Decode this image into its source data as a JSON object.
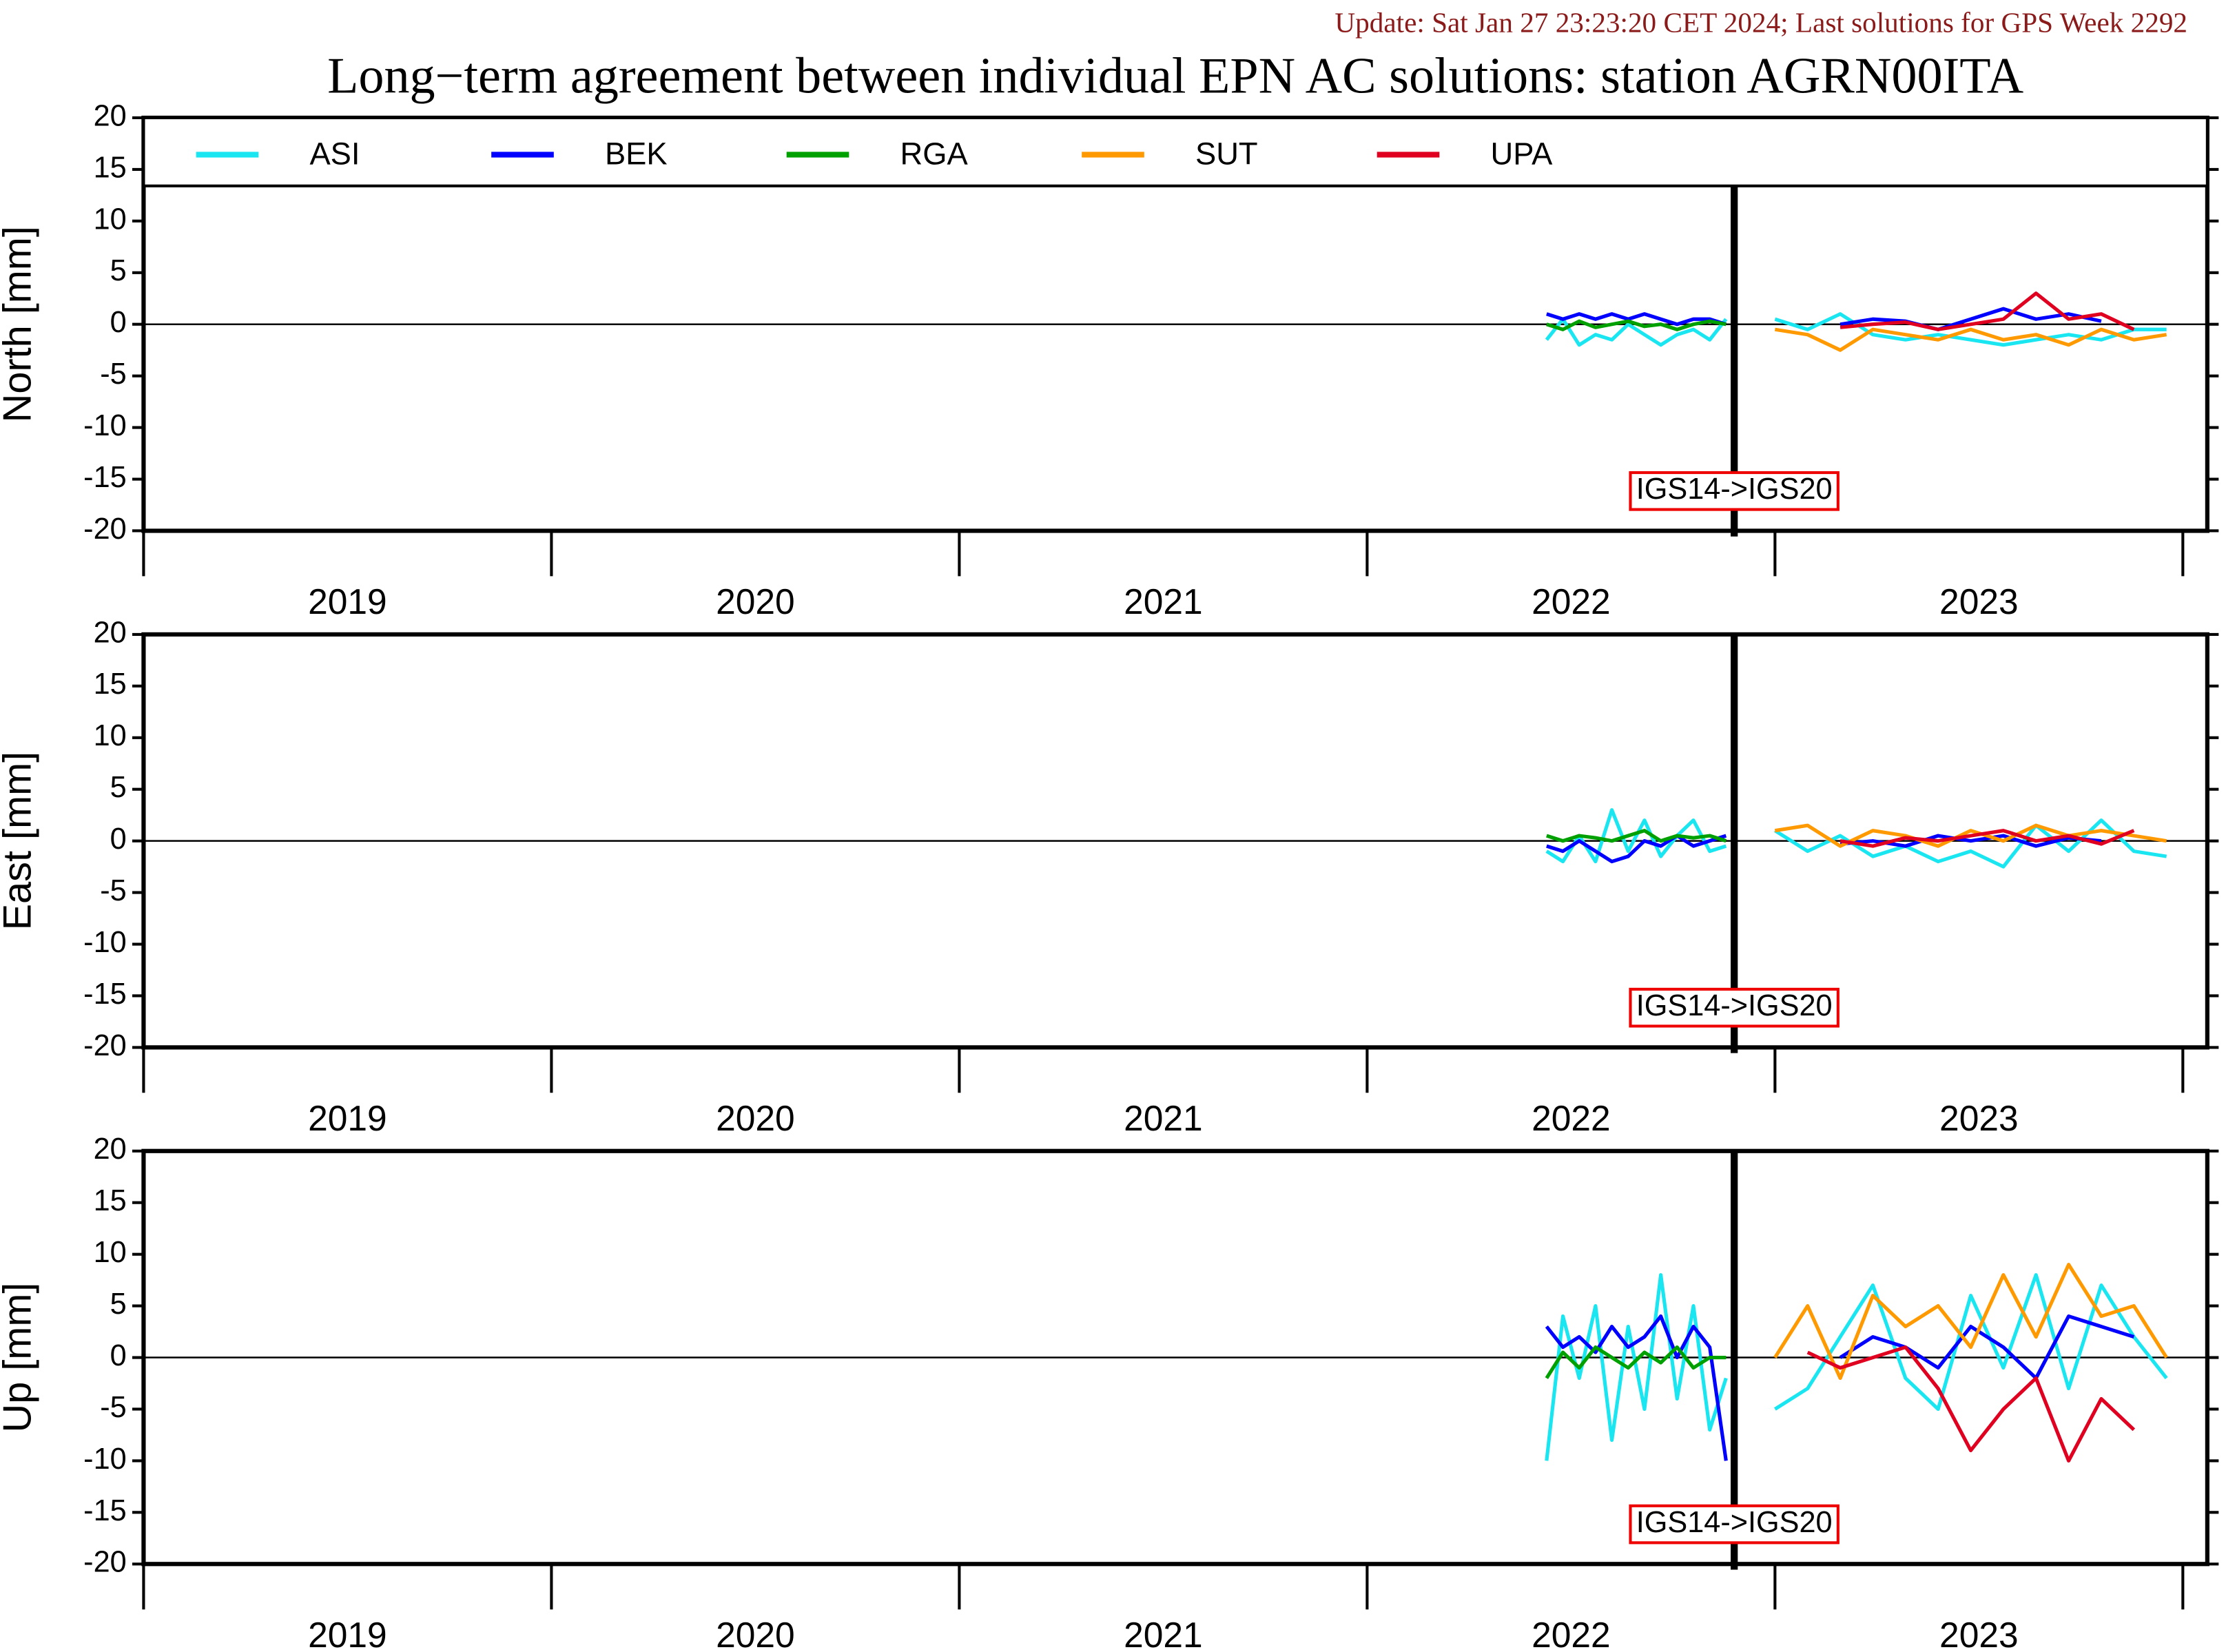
{
  "header": {
    "update": "Update: Sat Jan 27 23:23:20 CET 2024; Last solutions for GPS Week 2292",
    "title": "Long−term agreement between individual EPN AC solutions: station AGRN00ITA"
  },
  "chart_data": [
    {
      "type": "line",
      "y_label": "North [mm]",
      "legend": "top",
      "zero_line": true,
      "ylim": [
        -20,
        20
      ],
      "yticks": [
        -20,
        -15,
        -10,
        -5,
        0,
        5,
        10,
        15,
        20
      ],
      "xlim": [
        2019,
        2024.06
      ],
      "xticks": [
        2019,
        2020,
        2021,
        2022,
        2023,
        2024
      ],
      "x_labels": [
        {
          "value": 2019.5,
          "label": "2019"
        },
        {
          "value": 2020.5,
          "label": "2020"
        },
        {
          "value": 2021.5,
          "label": "2021"
        },
        {
          "value": 2022.5,
          "label": "2022"
        },
        {
          "value": 2023.5,
          "label": "2023"
        }
      ],
      "annotation": {
        "text": "IGS14->IGS20",
        "x": 2022.9
      },
      "x": [
        2022.44,
        2022.48,
        2022.52,
        2022.56,
        2022.6,
        2022.64,
        2022.68,
        2022.72,
        2022.76,
        2022.8,
        2022.84,
        2022.88,
        2022.94,
        2023.0,
        2023.08,
        2023.16,
        2023.24,
        2023.32,
        2023.4,
        2023.48,
        2023.56,
        2023.64,
        2023.72,
        2023.8,
        2023.88,
        2023.96
      ],
      "series": [
        {
          "name": "ASI",
          "color": "#19e6f0",
          "values": [
            -1.5,
            0.5,
            -2,
            -1,
            -1.5,
            0,
            -1,
            -2,
            -1,
            -0.5,
            -1.5,
            0.5,
            null,
            0.5,
            -0.5,
            1,
            -1,
            -1.5,
            -1,
            -1.5,
            -2,
            -1.5,
            -1,
            -1.5,
            -0.5,
            -0.5
          ]
        },
        {
          "name": "BEK",
          "color": "#0000ff",
          "values": [
            1,
            0.5,
            1,
            0.5,
            1,
            0.5,
            1,
            0.5,
            0,
            0.5,
            0.5,
            0,
            null,
            null,
            null,
            0,
            0.5,
            0.3,
            -0.5,
            0.5,
            1.5,
            0.5,
            1,
            0.3,
            null,
            null
          ]
        },
        {
          "name": "RGA",
          "color": "#00a000",
          "values": [
            0,
            -0.5,
            0.3,
            -0.3,
            0,
            0.3,
            -0.2,
            0,
            -0.5,
            0,
            0.3,
            0,
            null,
            null,
            null,
            null,
            null,
            null,
            null,
            null,
            null,
            null,
            null,
            null,
            null,
            null
          ]
        },
        {
          "name": "SUT",
          "color": "#ff9900",
          "values": [
            null,
            null,
            null,
            null,
            null,
            null,
            null,
            null,
            null,
            null,
            null,
            null,
            null,
            -0.5,
            -1,
            -2.5,
            -0.5,
            -1,
            -1.5,
            -0.5,
            -1.5,
            -1,
            -2,
            -0.5,
            -1.5,
            -1
          ]
        },
        {
          "name": "UPA",
          "color": "#e00020",
          "values": [
            null,
            null,
            null,
            null,
            null,
            null,
            null,
            null,
            null,
            null,
            null,
            null,
            null,
            null,
            null,
            -0.3,
            0,
            0.2,
            -0.5,
            0,
            0.5,
            3,
            0.5,
            1,
            -0.5,
            null
          ]
        }
      ]
    },
    {
      "type": "line",
      "y_label": "East [mm]",
      "zero_line": true,
      "ylim": [
        -20,
        20
      ],
      "yticks": [
        -20,
        -15,
        -10,
        -5,
        0,
        5,
        10,
        15,
        20
      ],
      "xlim": [
        2019,
        2024.06
      ],
      "xticks": [
        2019,
        2020,
        2021,
        2022,
        2023,
        2024
      ],
      "x_labels": [
        {
          "value": 2019.5,
          "label": "2019"
        },
        {
          "value": 2020.5,
          "label": "2020"
        },
        {
          "value": 2021.5,
          "label": "2021"
        },
        {
          "value": 2022.5,
          "label": "2022"
        },
        {
          "value": 2023.5,
          "label": "2023"
        }
      ],
      "annotation": {
        "text": "IGS14->IGS20",
        "x": 2022.9
      },
      "x": [
        2022.44,
        2022.48,
        2022.52,
        2022.56,
        2022.6,
        2022.64,
        2022.68,
        2022.72,
        2022.76,
        2022.8,
        2022.84,
        2022.88,
        2022.94,
        2023.0,
        2023.08,
        2023.16,
        2023.24,
        2023.32,
        2023.4,
        2023.48,
        2023.56,
        2023.64,
        2023.72,
        2023.8,
        2023.88,
        2023.96
      ],
      "series": [
        {
          "color": "#19e6f0",
          "values": [
            -1,
            -2,
            0.5,
            -2,
            3,
            -1,
            2,
            -1.5,
            0.5,
            2,
            -1,
            -0.5,
            null,
            1,
            -1,
            0.5,
            -1.5,
            -0.5,
            -2,
            -1,
            -2.5,
            1.5,
            -1,
            2,
            -1,
            -1.5
          ]
        },
        {
          "color": "#0000ff",
          "values": [
            -0.5,
            -1,
            0,
            -1,
            -2,
            -1.5,
            0,
            -0.5,
            0.5,
            -0.5,
            0,
            0.5,
            null,
            null,
            null,
            -0.3,
            0,
            -0.5,
            0.5,
            0,
            0.5,
            -0.5,
            0.3,
            0,
            null,
            null
          ]
        },
        {
          "color": "#00a000",
          "values": [
            0.5,
            0,
            0.5,
            0.3,
            0,
            0.5,
            1,
            0,
            0.5,
            0.3,
            0.5,
            0,
            null,
            null,
            null,
            null,
            null,
            null,
            null,
            null,
            null,
            null,
            null,
            null,
            null,
            null
          ]
        },
        {
          "color": "#ff9900",
          "values": [
            null,
            null,
            null,
            null,
            null,
            null,
            null,
            null,
            null,
            null,
            null,
            null,
            null,
            1,
            1.5,
            -0.5,
            1,
            0.5,
            -0.5,
            1,
            0,
            1.5,
            0.5,
            1,
            0.5,
            0
          ]
        },
        {
          "color": "#e00020",
          "values": [
            null,
            null,
            null,
            null,
            null,
            null,
            null,
            null,
            null,
            null,
            null,
            null,
            null,
            null,
            null,
            0,
            -0.5,
            0.3,
            0,
            0.5,
            1,
            0,
            0.5,
            -0.3,
            1,
            null
          ]
        }
      ]
    },
    {
      "type": "line",
      "y_label": "Up [mm]",
      "zero_line": true,
      "ylim": [
        -20,
        20
      ],
      "yticks": [
        -20,
        -15,
        -10,
        -5,
        0,
        5,
        10,
        15,
        20
      ],
      "xlim": [
        2019,
        2024.06
      ],
      "xticks": [
        2019,
        2020,
        2021,
        2022,
        2023,
        2024
      ],
      "x_labels": [
        {
          "value": 2019.5,
          "label": "2019"
        },
        {
          "value": 2020.5,
          "label": "2020"
        },
        {
          "value": 2021.5,
          "label": "2021"
        },
        {
          "value": 2022.5,
          "label": "2022"
        },
        {
          "value": 2023.5,
          "label": "2023"
        }
      ],
      "annotation": {
        "text": "IGS14->IGS20",
        "x": 2022.9
      },
      "x": [
        2022.44,
        2022.48,
        2022.52,
        2022.56,
        2022.6,
        2022.64,
        2022.68,
        2022.72,
        2022.76,
        2022.8,
        2022.84,
        2022.88,
        2022.94,
        2023.0,
        2023.08,
        2023.16,
        2023.24,
        2023.32,
        2023.4,
        2023.48,
        2023.56,
        2023.64,
        2023.72,
        2023.8,
        2023.88,
        2023.96
      ],
      "series": [
        {
          "color": "#19e6f0",
          "values": [
            -10,
            4,
            -2,
            5,
            -8,
            3,
            -5,
            8,
            -4,
            5,
            -7,
            -2,
            null,
            -5,
            -3,
            2,
            7,
            -2,
            -5,
            6,
            -1,
            8,
            -3,
            7,
            2,
            -2
          ]
        },
        {
          "color": "#0000ff",
          "values": [
            3,
            1,
            2,
            0.5,
            3,
            1,
            2,
            4,
            0,
            3,
            1,
            -10,
            null,
            null,
            null,
            0,
            2,
            1,
            -1,
            3,
            1,
            -2,
            4,
            3,
            2,
            null
          ]
        },
        {
          "color": "#00a000",
          "values": [
            -2,
            0.5,
            -1,
            1,
            0,
            -1,
            0.5,
            -0.5,
            1,
            -1,
            0,
            0,
            null,
            null,
            null,
            null,
            null,
            null,
            null,
            null,
            null,
            null,
            null,
            null,
            null,
            null
          ]
        },
        {
          "color": "#ff9900",
          "values": [
            null,
            null,
            null,
            null,
            null,
            null,
            null,
            null,
            null,
            null,
            null,
            null,
            null,
            0,
            5,
            -2,
            6,
            3,
            5,
            1,
            8,
            2,
            9,
            4,
            5,
            0
          ]
        },
        {
          "color": "#e00020",
          "values": [
            null,
            null,
            null,
            null,
            null,
            null,
            null,
            null,
            null,
            null,
            null,
            null,
            null,
            null,
            0.5,
            -1,
            0,
            1,
            -3,
            -9,
            -5,
            -2,
            -10,
            -4,
            -7,
            null
          ]
        }
      ]
    }
  ]
}
